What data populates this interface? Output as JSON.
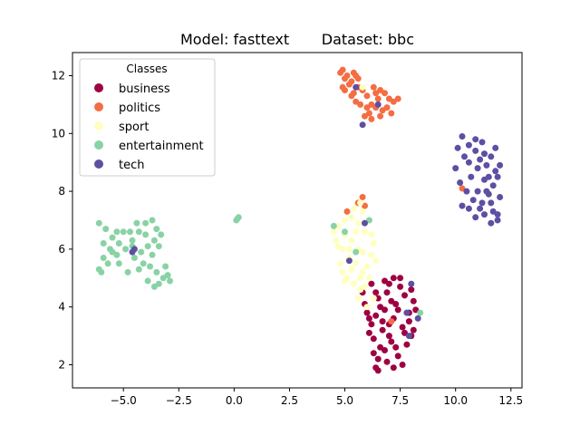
{
  "chart_data": {
    "type": "scatter",
    "title": "Model: fasttext       Dataset: bbc",
    "xlabel": "",
    "ylabel": "",
    "xlim": [
      -7.3,
      13.0
    ],
    "ylim": [
      1.2,
      12.8
    ],
    "xticks": [
      {
        "value": -5.0,
        "label": "−5.0"
      },
      {
        "value": -2.5,
        "label": "−2.5"
      },
      {
        "value": 0.0,
        "label": "0.0"
      },
      {
        "value": 2.5,
        "label": "2.5"
      },
      {
        "value": 5.0,
        "label": "5.0"
      },
      {
        "value": 7.5,
        "label": "7.5"
      },
      {
        "value": 10.0,
        "label": "10.0"
      },
      {
        "value": 12.5,
        "label": "12.5"
      }
    ],
    "yticks": [
      {
        "value": 2,
        "label": "2"
      },
      {
        "value": 4,
        "label": "4"
      },
      {
        "value": 6,
        "label": "6"
      },
      {
        "value": 8,
        "label": "8"
      },
      {
        "value": 10,
        "label": "10"
      },
      {
        "value": 12,
        "label": "12"
      }
    ],
    "grid": false,
    "legend": {
      "title": "Classes",
      "position": "top-left",
      "entries": [
        "business",
        "politics",
        "sport",
        "entertainment",
        "tech"
      ]
    },
    "series": [
      {
        "name": "business",
        "color": "#9e0142",
        "points": [
          [
            6.5,
            4.3
          ],
          [
            6.8,
            3.9
          ],
          [
            7.2,
            3.6
          ],
          [
            7.6,
            3.3
          ],
          [
            7.0,
            3.0
          ],
          [
            6.6,
            2.6
          ],
          [
            7.4,
            2.3
          ],
          [
            6.4,
            1.9
          ],
          [
            6.9,
            2.1
          ],
          [
            7.8,
            2.7
          ],
          [
            8.1,
            3.2
          ],
          [
            7.9,
            3.8
          ],
          [
            7.3,
            4.1
          ],
          [
            7.7,
            4.4
          ],
          [
            8.0,
            4.6
          ],
          [
            6.2,
            3.4
          ],
          [
            6.0,
            3.8
          ],
          [
            6.7,
            3.5
          ],
          [
            7.1,
            2.8
          ],
          [
            6.3,
            2.4
          ],
          [
            7.5,
            4.7
          ],
          [
            7.0,
            4.8
          ],
          [
            6.6,
            4.0
          ],
          [
            5.9,
            4.1
          ],
          [
            6.1,
            3.1
          ],
          [
            6.5,
            2.2
          ],
          [
            7.2,
            1.9
          ],
          [
            7.6,
            2.0
          ],
          [
            6.8,
            2.5
          ],
          [
            7.9,
            3.5
          ],
          [
            8.0,
            3.0
          ],
          [
            6.4,
            3.7
          ],
          [
            6.9,
            4.5
          ],
          [
            7.4,
            3.9
          ],
          [
            7.1,
            4.2
          ],
          [
            5.8,
            4.5
          ],
          [
            6.3,
            2.9
          ],
          [
            6.7,
            3.2
          ],
          [
            7.3,
            2.6
          ],
          [
            7.7,
            3.1
          ],
          [
            7.0,
            3.4
          ],
          [
            6.5,
            1.8
          ],
          [
            8.2,
            3.9
          ],
          [
            7.5,
            5.0
          ],
          [
            6.2,
            4.8
          ],
          [
            7.2,
            5.0
          ],
          [
            6.8,
            4.9
          ],
          [
            8.1,
            4.2
          ],
          [
            6.1,
            3.6
          ],
          [
            6.4,
            4.5
          ]
        ]
      },
      {
        "name": "politics",
        "color": "#f46d43",
        "points": [
          [
            4.9,
            12.2
          ],
          [
            5.1,
            12.0
          ],
          [
            5.3,
            11.8
          ],
          [
            5.6,
            11.9
          ],
          [
            5.0,
            11.5
          ],
          [
            5.4,
            11.4
          ],
          [
            5.8,
            11.5
          ],
          [
            6.0,
            11.3
          ],
          [
            5.5,
            11.1
          ],
          [
            6.2,
            11.0
          ],
          [
            6.5,
            11.2
          ],
          [
            6.8,
            11.4
          ],
          [
            7.0,
            11.2
          ],
          [
            6.4,
            10.9
          ],
          [
            6.7,
            10.8
          ],
          [
            6.1,
            10.7
          ],
          [
            5.2,
            11.7
          ],
          [
            5.7,
            11.0
          ],
          [
            6.3,
            11.6
          ],
          [
            5.9,
            10.6
          ],
          [
            6.6,
            11.5
          ],
          [
            7.2,
            11.1
          ],
          [
            5.0,
            11.9
          ],
          [
            4.8,
            12.1
          ],
          [
            5.4,
            12.1
          ],
          [
            6.0,
            10.9
          ],
          [
            5.3,
            11.3
          ],
          [
            6.9,
            10.9
          ],
          [
            5.6,
            11.6
          ],
          [
            6.2,
            10.5
          ],
          [
            7.4,
            11.2
          ],
          [
            4.9,
            11.6
          ],
          [
            5.5,
            12.0
          ],
          [
            6.4,
            11.4
          ],
          [
            7.1,
            10.7
          ],
          [
            6.6,
            10.6
          ],
          [
            5.1,
            7.3
          ],
          [
            5.6,
            7.6
          ],
          [
            5.8,
            7.8
          ],
          [
            10.3,
            8.1
          ],
          [
            7.1,
            3.5
          ],
          [
            5.9,
            7.5
          ]
        ]
      },
      {
        "name": "sport",
        "color": "#ffffbf",
        "points": [
          [
            4.7,
            6.8
          ],
          [
            5.0,
            6.5
          ],
          [
            5.3,
            6.3
          ],
          [
            5.6,
            6.0
          ],
          [
            5.2,
            5.7
          ],
          [
            5.5,
            5.5
          ],
          [
            5.8,
            5.2
          ],
          [
            5.1,
            5.0
          ],
          [
            5.4,
            4.8
          ],
          [
            5.7,
            4.6
          ],
          [
            6.0,
            5.4
          ],
          [
            6.2,
            5.8
          ],
          [
            4.9,
            6.0
          ],
          [
            4.6,
            6.3
          ],
          [
            5.9,
            6.6
          ],
          [
            5.6,
            6.9
          ],
          [
            5.3,
            7.1
          ],
          [
            5.8,
            7.3
          ],
          [
            6.1,
            7.0
          ],
          [
            6.3,
            6.2
          ],
          [
            4.8,
            5.5
          ],
          [
            5.0,
            4.9
          ],
          [
            5.6,
            4.3
          ],
          [
            6.0,
            4.0
          ],
          [
            6.3,
            4.3
          ],
          [
            5.7,
            5.0
          ],
          [
            6.4,
            5.6
          ],
          [
            4.5,
            6.6
          ],
          [
            5.2,
            6.0
          ],
          [
            5.5,
            6.6
          ],
          [
            6.1,
            5.0
          ],
          [
            5.9,
            4.7
          ],
          [
            4.9,
            5.2
          ],
          [
            5.4,
            7.4
          ],
          [
            5.7,
            7.6
          ],
          [
            5.0,
            7.0
          ],
          [
            4.7,
            6.1
          ],
          [
            6.2,
            6.5
          ],
          [
            5.3,
            5.3
          ],
          [
            5.8,
            5.9
          ],
          [
            5.8,
            11.6
          ]
        ]
      },
      {
        "name": "entertainment",
        "color": "#89d2a4",
        "points": [
          [
            -6.1,
            6.9
          ],
          [
            -5.8,
            6.7
          ],
          [
            -5.5,
            6.4
          ],
          [
            -5.2,
            6.2
          ],
          [
            -5.6,
            6.0
          ],
          [
            -5.9,
            5.7
          ],
          [
            -6.1,
            5.3
          ],
          [
            -5.7,
            5.5
          ],
          [
            -5.3,
            5.8
          ],
          [
            -4.9,
            6.0
          ],
          [
            -4.6,
            6.3
          ],
          [
            -4.3,
            6.6
          ],
          [
            -4.0,
            6.9
          ],
          [
            -3.7,
            7.0
          ],
          [
            -3.5,
            6.7
          ],
          [
            -3.6,
            6.3
          ],
          [
            -3.9,
            6.1
          ],
          [
            -4.2,
            5.9
          ],
          [
            -4.5,
            5.7
          ],
          [
            -4.1,
            5.5
          ],
          [
            -3.8,
            5.4
          ],
          [
            -3.5,
            5.2
          ],
          [
            -3.2,
            5.0
          ],
          [
            -3.4,
            4.8
          ],
          [
            -3.0,
            5.1
          ],
          [
            -3.1,
            5.4
          ],
          [
            -4.4,
            6.9
          ],
          [
            -4.7,
            6.6
          ],
          [
            -5.0,
            6.6
          ],
          [
            -5.2,
            5.5
          ],
          [
            -6.0,
            5.2
          ],
          [
            -5.5,
            5.9
          ],
          [
            -4.0,
            6.5
          ],
          [
            -3.7,
            5.8
          ],
          [
            -3.6,
            4.7
          ],
          [
            -2.9,
            4.9
          ],
          [
            -4.8,
            5.2
          ],
          [
            -5.3,
            6.6
          ],
          [
            -5.9,
            6.2
          ],
          [
            -3.3,
            6.5
          ],
          [
            -4.3,
            5.3
          ],
          [
            -3.9,
            4.9
          ],
          [
            -4.6,
            6.1
          ],
          [
            -3.4,
            6.1
          ],
          [
            0.1,
            7.0
          ],
          [
            0.2,
            7.1
          ],
          [
            0.15,
            7.05
          ],
          [
            4.5,
            6.8
          ],
          [
            5.0,
            6.6
          ],
          [
            5.5,
            5.9
          ],
          [
            8.4,
            3.8
          ],
          [
            6.1,
            7.0
          ]
        ]
      },
      {
        "name": "tech",
        "color": "#5e4fa2",
        "points": [
          [
            10.3,
            9.9
          ],
          [
            10.6,
            9.6
          ],
          [
            10.9,
            9.4
          ],
          [
            11.1,
            9.1
          ],
          [
            11.4,
            8.9
          ],
          [
            11.6,
            9.2
          ],
          [
            11.8,
            8.7
          ],
          [
            11.3,
            8.4
          ],
          [
            11.0,
            8.0
          ],
          [
            10.8,
            7.7
          ],
          [
            10.6,
            7.4
          ],
          [
            11.2,
            7.6
          ],
          [
            11.5,
            7.9
          ],
          [
            11.7,
            7.3
          ],
          [
            11.9,
            7.0
          ],
          [
            11.6,
            6.9
          ],
          [
            11.3,
            7.2
          ],
          [
            10.2,
            8.3
          ],
          [
            10.4,
            9.2
          ],
          [
            10.1,
            9.5
          ],
          [
            11.0,
            8.8
          ],
          [
            11.9,
            8.5
          ],
          [
            12.0,
            7.8
          ],
          [
            10.7,
            8.5
          ],
          [
            11.4,
            8.0
          ],
          [
            10.9,
            7.1
          ],
          [
            11.8,
            9.5
          ],
          [
            10.5,
            8.0
          ],
          [
            11.2,
            9.7
          ],
          [
            12.0,
            8.9
          ],
          [
            10.9,
            9.8
          ],
          [
            11.5,
            8.5
          ],
          [
            10.3,
            7.5
          ],
          [
            11.7,
            8.2
          ],
          [
            10.0,
            8.8
          ],
          [
            11.1,
            7.4
          ],
          [
            11.9,
            7.2
          ],
          [
            11.3,
            9.3
          ],
          [
            10.6,
            9.0
          ],
          [
            11.6,
            7.6
          ],
          [
            5.5,
            11.6
          ],
          [
            5.8,
            10.3
          ],
          [
            6.5,
            11.0
          ],
          [
            5.9,
            6.9
          ],
          [
            5.2,
            5.6
          ],
          [
            8.0,
            4.8
          ],
          [
            7.8,
            3.8
          ],
          [
            8.3,
            3.6
          ],
          [
            7.9,
            3.0
          ],
          [
            -4.6,
            5.9
          ],
          [
            -4.5,
            6.0
          ]
        ]
      }
    ]
  }
}
